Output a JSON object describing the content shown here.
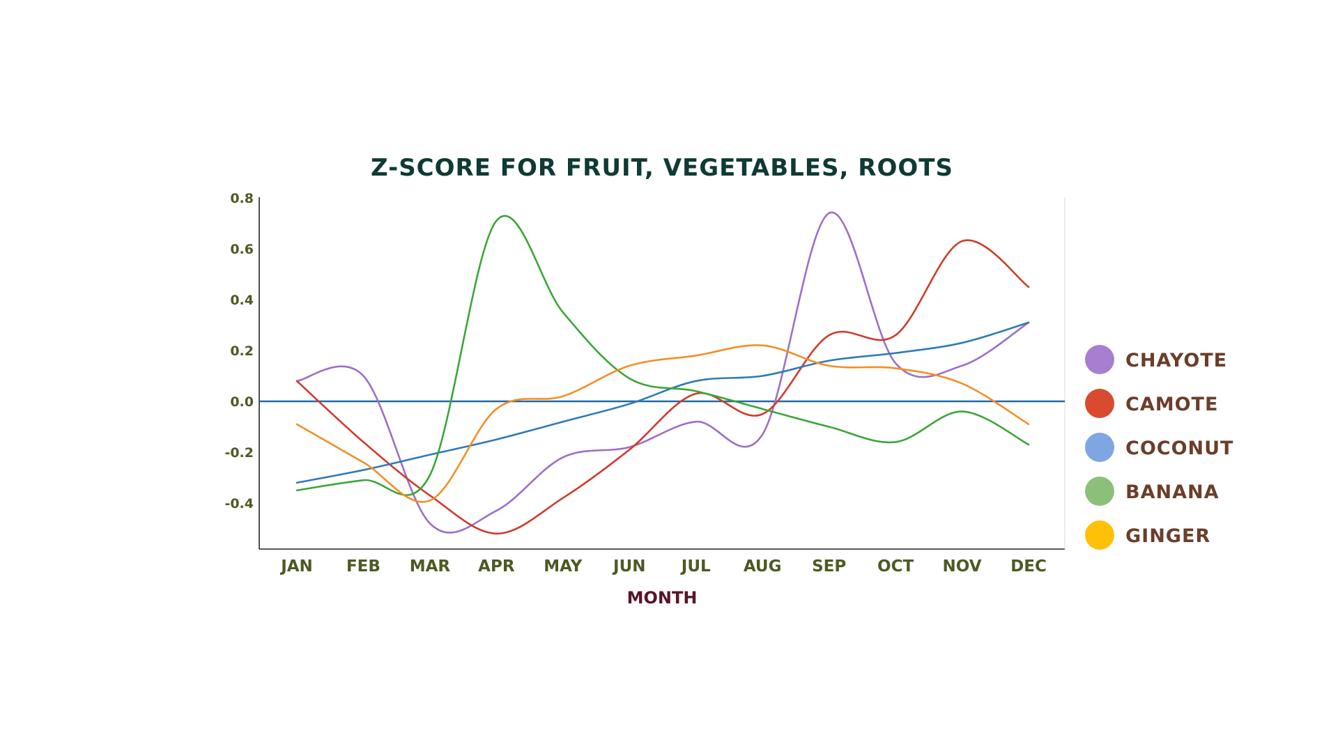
{
  "chart_data": {
    "type": "line",
    "title": "Z-SCORE FOR FRUIT, VEGETABLES, ROOTS",
    "xlabel": "MONTH",
    "ylabel": "",
    "categories": [
      "JAN",
      "FEB",
      "MAR",
      "APR",
      "MAY",
      "JUN",
      "JUL",
      "AUG",
      "SEP",
      "OCT",
      "NOV",
      "DEC"
    ],
    "ylim": [
      -0.58,
      0.8
    ],
    "yticks": [
      0.8,
      0.6,
      0.4,
      0.2,
      0.0,
      -0.2,
      -0.4
    ],
    "ytick_labels": [
      "0.8",
      "0.6",
      "0.4",
      "0.2",
      "0.0",
      "-0.2",
      "-0.4"
    ],
    "zero_line": 0.0,
    "zero_line_color": "#1f6aa5",
    "grid": false,
    "legend_position": "right",
    "series": [
      {
        "name": "CHAYOTE",
        "color": "#9b6fc6",
        "legend_color": "#a77fd0",
        "values": [
          0.08,
          0.1,
          -0.48,
          -0.43,
          -0.22,
          -0.18,
          -0.08,
          -0.13,
          0.74,
          0.15,
          0.14,
          0.31
        ]
      },
      {
        "name": "CAMOTE",
        "color": "#d03a2b",
        "legend_color": "#d94a2e",
        "values": [
          0.08,
          -0.16,
          -0.37,
          -0.52,
          -0.38,
          -0.19,
          0.03,
          -0.05,
          0.26,
          0.26,
          0.63,
          0.45
        ]
      },
      {
        "name": "COCONUT",
        "color": "#2f7ab8",
        "legend_color": "#7ea6e3",
        "values": [
          -0.32,
          -0.27,
          -0.21,
          -0.15,
          -0.08,
          -0.01,
          0.08,
          0.1,
          0.16,
          0.19,
          0.23,
          0.31
        ]
      },
      {
        "name": "BANANA",
        "color": "#3aa637",
        "legend_color": "#8cc07a",
        "values": [
          -0.35,
          -0.31,
          -0.29,
          0.71,
          0.35,
          0.09,
          0.04,
          -0.03,
          -0.1,
          -0.16,
          -0.04,
          -0.17
        ]
      },
      {
        "name": "GINGER",
        "color": "#f38f24",
        "legend_color": "#ffc107",
        "values": [
          -0.09,
          -0.24,
          -0.39,
          -0.03,
          0.02,
          0.14,
          0.18,
          0.22,
          0.14,
          0.13,
          0.07,
          -0.09
        ]
      }
    ]
  }
}
